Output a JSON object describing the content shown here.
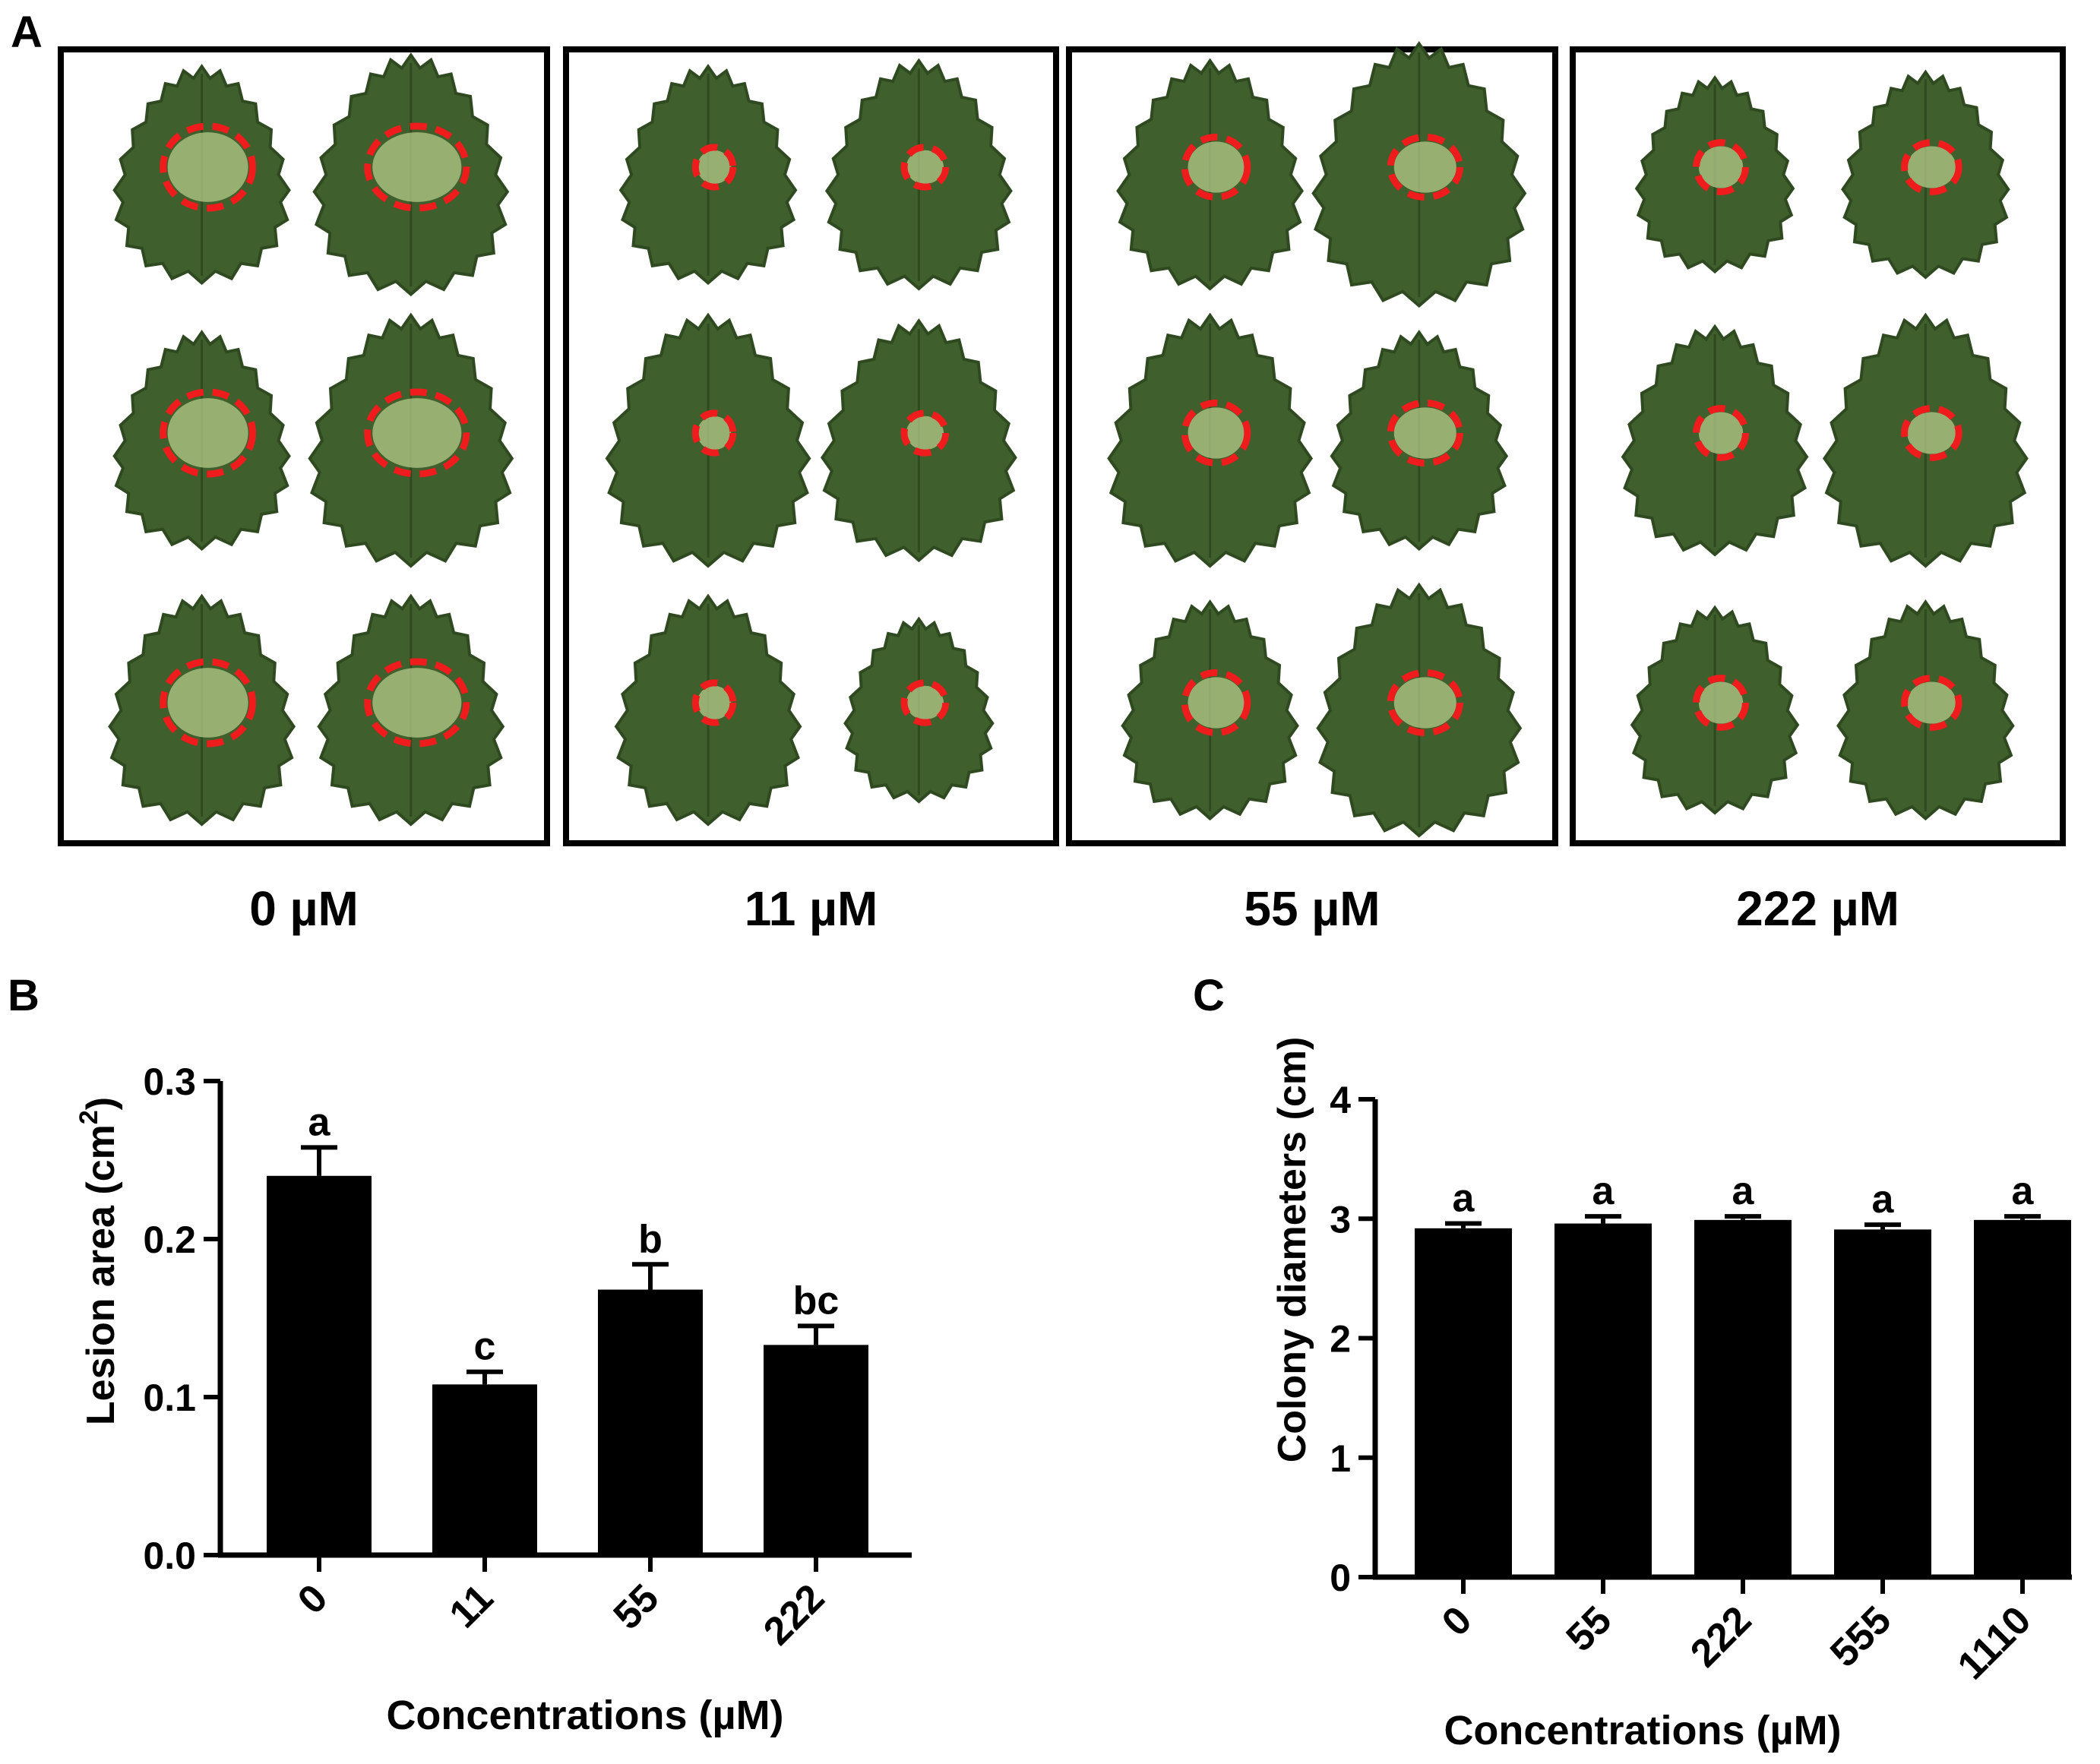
{
  "panel_a": {
    "label": "A",
    "groups": [
      {
        "label": "0 µM",
        "lesion_scale": 1.0
      },
      {
        "label": "11 µM",
        "lesion_scale": 0.42
      },
      {
        "label": "55 µM",
        "lesion_scale": 0.7
      },
      {
        "label": "222 µM",
        "lesion_scale": 0.55
      }
    ],
    "colors": {
      "leaf": "#3f5f2c",
      "leaf_dark": "#2f4a20",
      "lesion": "#b7c98a",
      "circle": "#ee1c1c",
      "frame": "#000000"
    }
  },
  "chart_data": [
    {
      "panel_label": "B",
      "type": "bar",
      "categories": [
        "0",
        "11",
        "55",
        "222"
      ],
      "values": [
        0.24,
        0.108,
        0.168,
        0.133
      ],
      "errors": [
        0.018,
        0.008,
        0.016,
        0.012
      ],
      "letters": [
        "a",
        "c",
        "b",
        "bc"
      ],
      "yticks": [
        "0.0",
        "0.1",
        "0.2",
        "0.3"
      ],
      "ylim": [
        0,
        0.3
      ],
      "ylabel": "Lesion area (cm",
      "ylabel_sup": "2",
      "ylabel_close": ")",
      "xlabel": "Concentrations (µM)",
      "bar_color": "#000000"
    },
    {
      "panel_label": "C",
      "type": "bar",
      "categories": [
        "0",
        "55",
        "222",
        "555",
        "1110"
      ],
      "values": [
        2.92,
        2.96,
        2.99,
        2.91,
        2.99
      ],
      "errors": [
        0.04,
        0.06,
        0.03,
        0.04,
        0.03
      ],
      "letters": [
        "a",
        "a",
        "a",
        "a",
        "a"
      ],
      "yticks": [
        "0",
        "1",
        "2",
        "3",
        "4"
      ],
      "ylim": [
        0,
        4
      ],
      "ylabel": "Colony diameters (cm)",
      "xlabel": "Concentrations (µM)",
      "bar_color": "#000000"
    }
  ]
}
